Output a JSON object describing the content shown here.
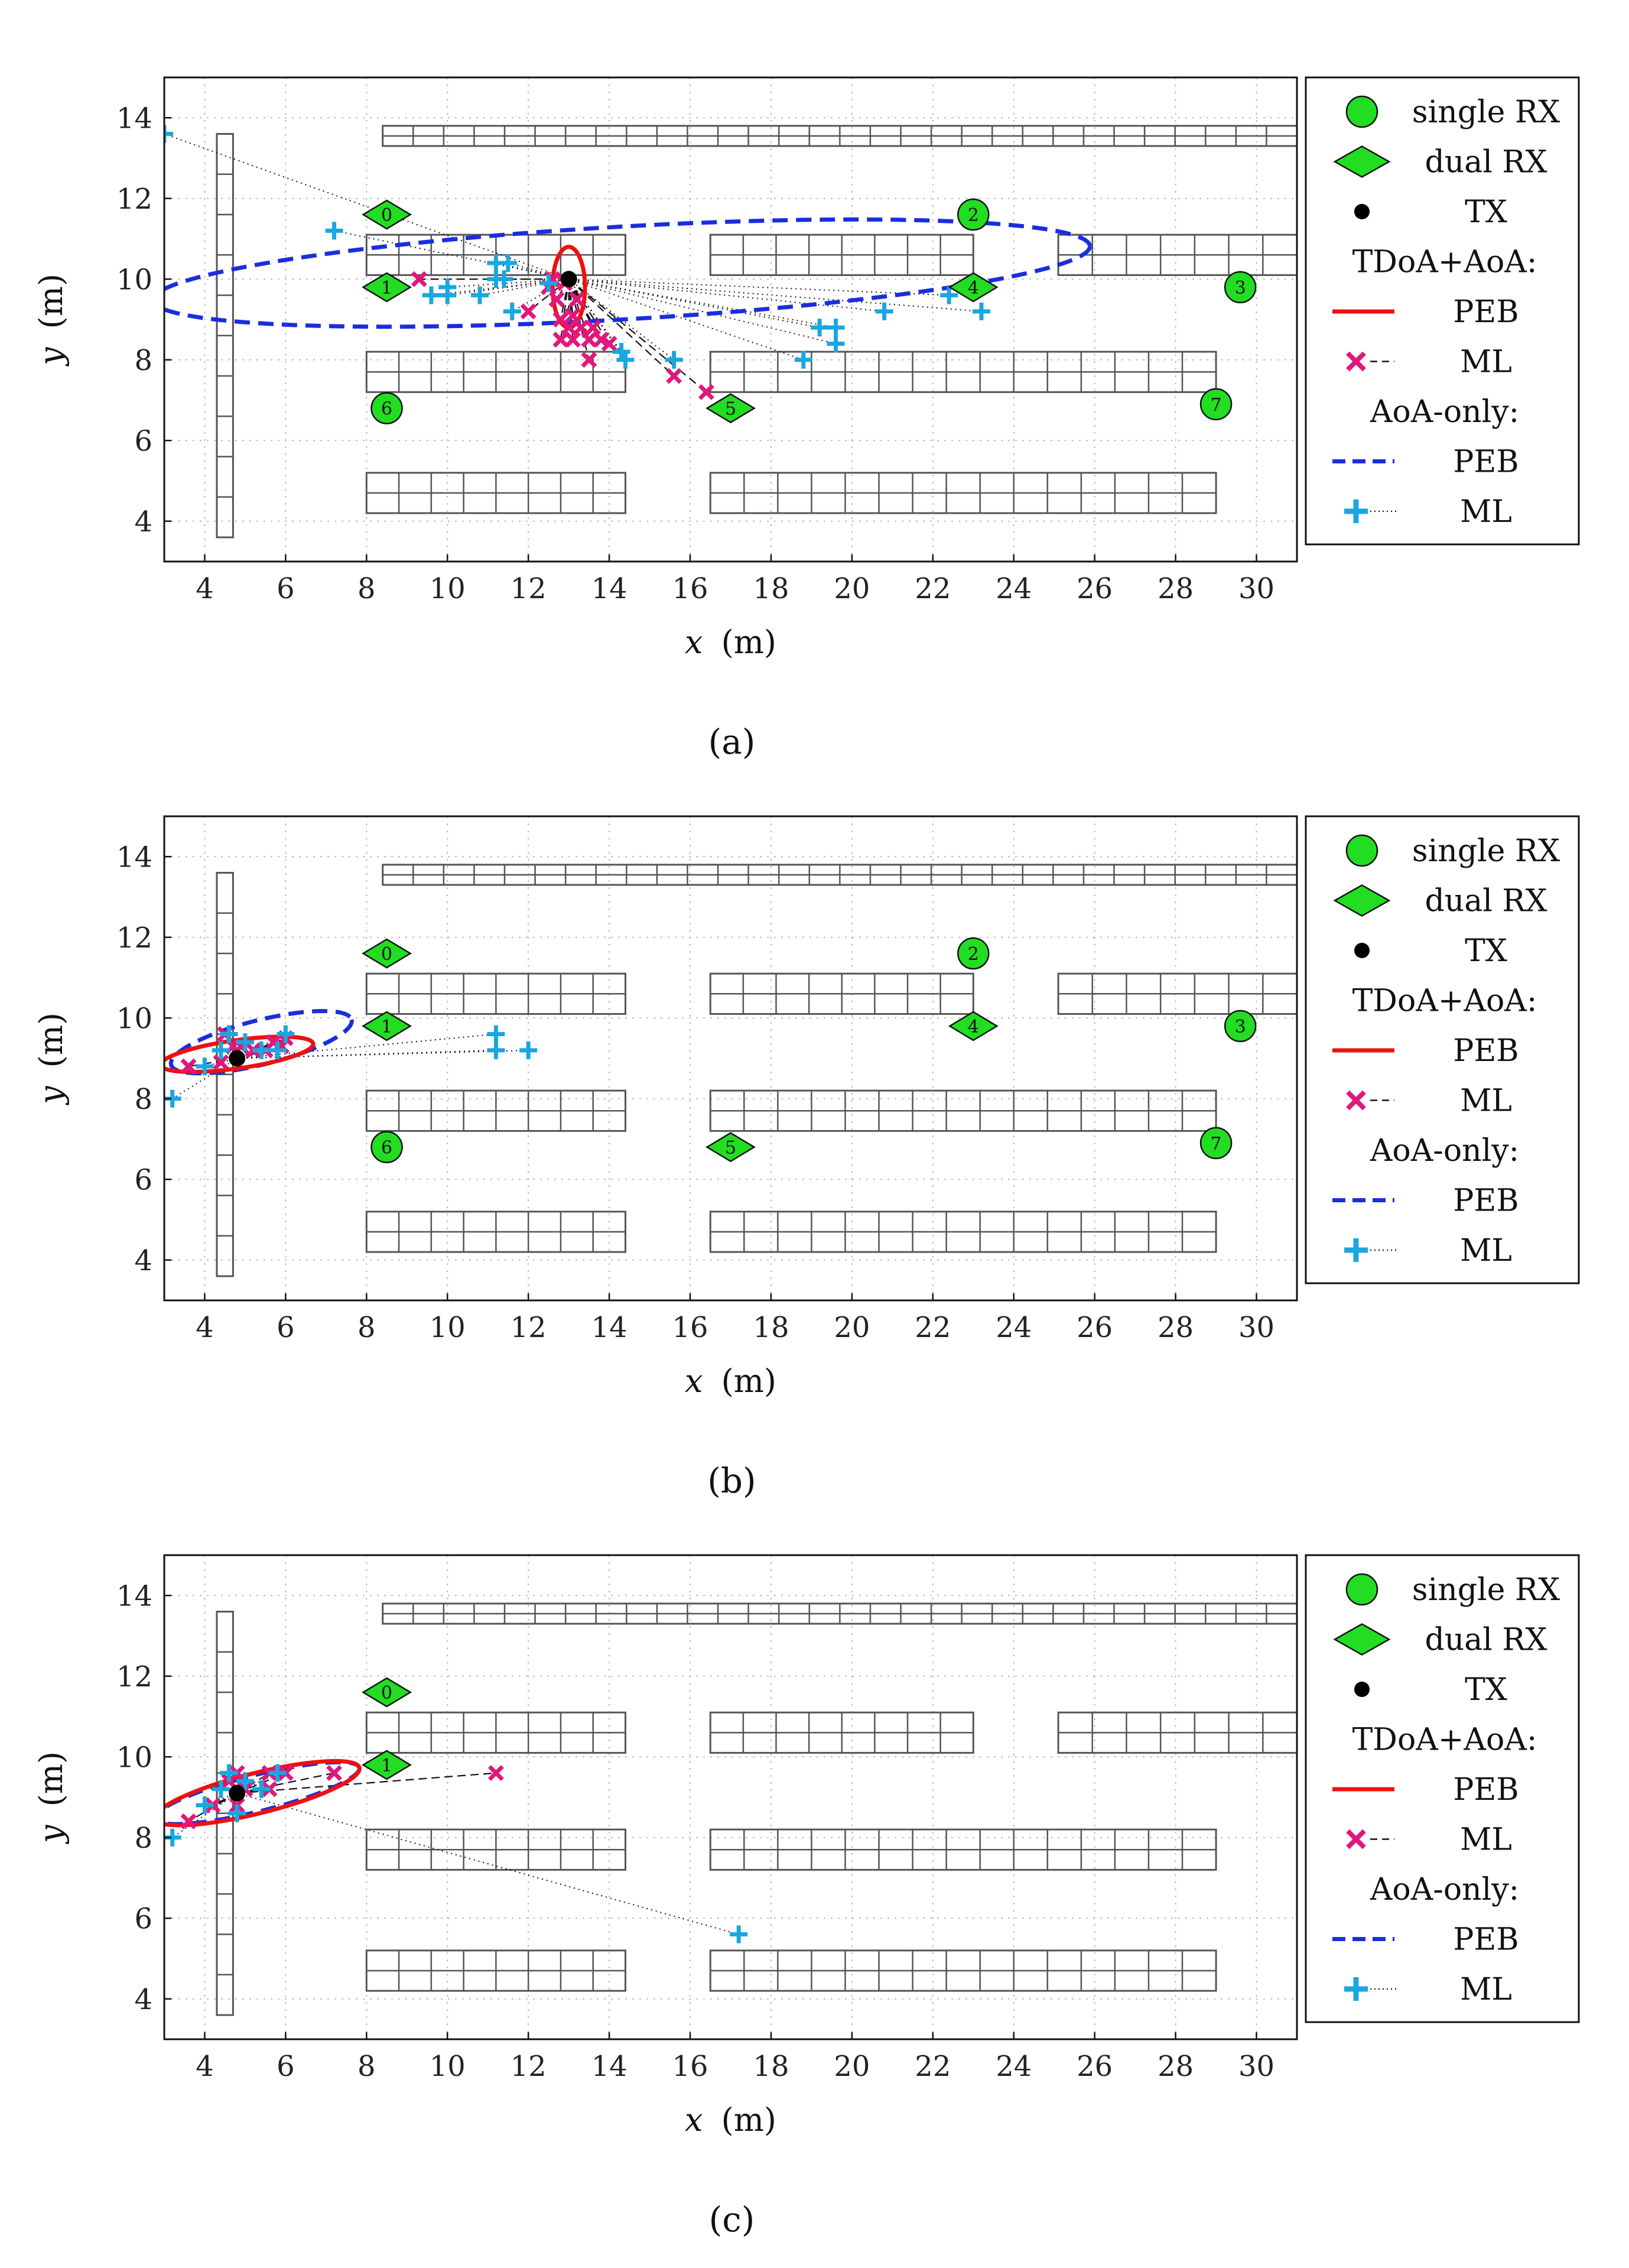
{
  "figure": {
    "axis_range": {
      "xlim": [
        3,
        31
      ],
      "ylim": [
        3,
        15
      ]
    },
    "x_ticks": [
      4,
      6,
      8,
      10,
      12,
      14,
      16,
      18,
      20,
      22,
      24,
      26,
      28,
      30
    ],
    "y_ticks": [
      4,
      6,
      8,
      10,
      12,
      14
    ],
    "x_label": {
      "var": "x",
      "unit": "(m)"
    },
    "y_label": {
      "var": "y",
      "unit": "(m)"
    },
    "legend": {
      "single_rx": "single RX",
      "dual_rx": "dual RX",
      "tx": "TX",
      "tdoa_aoa_header": "TDoA+AoA:",
      "tdoa_peb": "PEB",
      "tdoa_ml": "ML",
      "aoa_header": "AoA-only:",
      "aoa_peb": "PEB",
      "aoa_ml": "ML"
    },
    "colors": {
      "rx_fill": "#22dd22",
      "tdoa_peb": "#ee1111",
      "tdoa_ml": "#e0187c",
      "aoa_peb": "#1a2edd",
      "aoa_ml": "#1aa6e0",
      "tx": "#000000",
      "grid": "#bbbbbb",
      "shelf": "#555555"
    }
  },
  "chart_data": [
    {
      "type": "scatter",
      "panel": "a",
      "caption": "(a)",
      "xlabel": "x (m)",
      "ylabel": "y (m)",
      "xlim": [
        3,
        31
      ],
      "ylim": [
        3,
        15
      ],
      "grid": true,
      "shelves": [
        {
          "x0": 8.4,
          "x1": 31,
          "y0": 13.3,
          "y1": 13.8,
          "n": 30
        },
        {
          "x0": 8,
          "x1": 14.4,
          "y0": 10.1,
          "y1": 11.1,
          "n": 8
        },
        {
          "x0": 16.5,
          "x1": 23,
          "y0": 10.1,
          "y1": 11.1,
          "n": 8
        },
        {
          "x0": 25.1,
          "x1": 31,
          "y0": 10.1,
          "y1": 11.1,
          "n": 7
        },
        {
          "x0": 8,
          "x1": 14.4,
          "y0": 7.2,
          "y1": 8.2,
          "n": 8
        },
        {
          "x0": 16.5,
          "x1": 29,
          "y0": 7.2,
          "y1": 8.2,
          "n": 15
        },
        {
          "x0": 8,
          "x1": 14.4,
          "y0": 4.2,
          "y1": 5.2,
          "n": 8
        },
        {
          "x0": 16.5,
          "x1": 29,
          "y0": 4.2,
          "y1": 5.2,
          "n": 15
        },
        {
          "x0": 4.3,
          "x1": 4.7,
          "y0": 3.6,
          "y1": 13.6,
          "n": 10,
          "vertical": true
        }
      ],
      "single_rx": [
        {
          "id": "2",
          "x": 23,
          "y": 11.6
        },
        {
          "id": "3",
          "x": 29.6,
          "y": 9.8
        },
        {
          "id": "6",
          "x": 8.5,
          "y": 6.8
        },
        {
          "id": "7",
          "x": 29,
          "y": 6.9
        }
      ],
      "dual_rx": [
        {
          "id": "0",
          "x": 8.5,
          "y": 11.6
        },
        {
          "id": "1",
          "x": 8.5,
          "y": 9.8
        },
        {
          "id": "4",
          "x": 23,
          "y": 9.8
        },
        {
          "id": "5",
          "x": 17,
          "y": 6.8
        }
      ],
      "tx": {
        "x": 13,
        "y": 10
      },
      "tdoa_peb_ellipse": {
        "cx": 13,
        "cy": 9.8,
        "rx": 0.4,
        "ry": 1.0,
        "angle": 0
      },
      "aoa_peb_ellipse": {
        "cx": 14.3,
        "cy": 10.15,
        "rx": 11.6,
        "ry": 1.15,
        "angle": 3.3
      },
      "tdoa_ml": [
        [
          9.3,
          10.0
        ],
        [
          12.0,
          9.2
        ],
        [
          12.5,
          9.8
        ],
        [
          12.7,
          9.5
        ],
        [
          12.8,
          9.0
        ],
        [
          12.8,
          8.5
        ],
        [
          13.0,
          8.8
        ],
        [
          13.1,
          8.5
        ],
        [
          13.3,
          8.8
        ],
        [
          13.5,
          8.5
        ],
        [
          13.6,
          8.8
        ],
        [
          13.8,
          8.5
        ],
        [
          13.5,
          8.0
        ],
        [
          14.0,
          8.4
        ],
        [
          15.6,
          7.6
        ],
        [
          16.4,
          7.2
        ],
        [
          12.9,
          9.9
        ],
        [
          13.2,
          9.5
        ],
        [
          12.6,
          10.0
        ],
        [
          13.1,
          9.1
        ]
      ],
      "aoa_ml": [
        [
          7.2,
          11.2
        ],
        [
          9.6,
          9.6
        ],
        [
          10.0,
          9.8
        ],
        [
          10.0,
          9.6
        ],
        [
          10.8,
          9.6
        ],
        [
          11.2,
          10.4
        ],
        [
          11.5,
          10.4
        ],
        [
          11.4,
          10.0
        ],
        [
          11.6,
          9.2
        ],
        [
          12.5,
          9.9
        ],
        [
          14.3,
          8.2
        ],
        [
          14.4,
          8.0
        ],
        [
          15.6,
          8.0
        ],
        [
          18.8,
          8.0
        ],
        [
          19.2,
          8.8
        ],
        [
          19.6,
          8.8
        ],
        [
          19.6,
          8.4
        ],
        [
          20.8,
          9.2
        ],
        [
          22.4,
          9.6
        ],
        [
          23.2,
          9.2
        ],
        [
          11.2,
          10.0
        ],
        [
          3.0,
          13.6
        ]
      ]
    },
    {
      "type": "scatter",
      "panel": "b",
      "caption": "(b)",
      "xlabel": "x (m)",
      "ylabel": "y (m)",
      "xlim": [
        3,
        31
      ],
      "ylim": [
        3,
        15
      ],
      "grid": true,
      "single_rx": [
        {
          "id": "2",
          "x": 23,
          "y": 11.6
        },
        {
          "id": "3",
          "x": 29.6,
          "y": 9.8
        },
        {
          "id": "6",
          "x": 8.5,
          "y": 6.8
        },
        {
          "id": "7",
          "x": 29,
          "y": 6.9
        }
      ],
      "dual_rx": [
        {
          "id": "0",
          "x": 8.5,
          "y": 11.6
        },
        {
          "id": "1",
          "x": 8.5,
          "y": 9.8
        },
        {
          "id": "4",
          "x": 23,
          "y": 9.8
        },
        {
          "id": "5",
          "x": 17,
          "y": 6.8
        }
      ],
      "tx": {
        "x": 4.8,
        "y": 9.0
      },
      "tdoa_peb_ellipse": {
        "cx": 4.8,
        "cy": 9.1,
        "rx": 1.9,
        "ry": 0.35,
        "angle": 8
      },
      "aoa_peb_ellipse": {
        "cx": 5.4,
        "cy": 9.4,
        "rx": 2.3,
        "ry": 0.55,
        "angle": 14
      },
      "tdoa_ml": [
        [
          3.6,
          8.8
        ],
        [
          4.4,
          8.9
        ],
        [
          4.5,
          9.6
        ],
        [
          4.7,
          9.3
        ],
        [
          4.9,
          9.3
        ],
        [
          5.2,
          9.2
        ],
        [
          5.5,
          9.2
        ],
        [
          5.7,
          9.4
        ],
        [
          5.9,
          9.3
        ],
        [
          6.0,
          9.5
        ]
      ],
      "aoa_ml": [
        [
          3.2,
          8.0
        ],
        [
          4.0,
          8.8
        ],
        [
          4.4,
          9.2
        ],
        [
          4.6,
          9.6
        ],
        [
          5.0,
          9.4
        ],
        [
          5.4,
          9.2
        ],
        [
          5.8,
          9.2
        ],
        [
          6.0,
          9.6
        ],
        [
          11.2,
          9.6
        ],
        [
          11.2,
          9.2
        ],
        [
          12.0,
          9.2
        ]
      ]
    },
    {
      "type": "scatter",
      "panel": "c",
      "caption": "(c)",
      "xlabel": "x (m)",
      "ylabel": "y (m)",
      "xlim": [
        3,
        31
      ],
      "ylim": [
        3,
        15
      ],
      "grid": true,
      "single_rx": [],
      "dual_rx": [
        {
          "id": "0",
          "x": 8.5,
          "y": 11.6
        },
        {
          "id": "1",
          "x": 8.5,
          "y": 9.8
        }
      ],
      "tx": {
        "x": 4.8,
        "y": 9.1
      },
      "tdoa_peb_ellipse": {
        "cx": 5.3,
        "cy": 9.1,
        "rx": 2.6,
        "ry": 0.5,
        "angle": 14
      },
      "aoa_peb_ellipse": {
        "cx": 5.3,
        "cy": 9.1,
        "rx": 2.6,
        "ry": 0.45,
        "angle": 14
      },
      "tdoa_ml": [
        [
          3.6,
          8.4
        ],
        [
          4.2,
          8.8
        ],
        [
          4.6,
          9.4
        ],
        [
          4.8,
          9.6
        ],
        [
          5.0,
          9.2
        ],
        [
          5.6,
          9.6
        ],
        [
          5.6,
          9.2
        ],
        [
          6.0,
          9.6
        ],
        [
          7.2,
          9.6
        ],
        [
          11.2,
          9.6
        ],
        [
          4.8,
          8.8
        ]
      ],
      "aoa_ml": [
        [
          3.2,
          8.0
        ],
        [
          4.0,
          8.8
        ],
        [
          4.4,
          9.2
        ],
        [
          4.6,
          9.6
        ],
        [
          5.0,
          9.4
        ],
        [
          5.4,
          9.2
        ],
        [
          5.8,
          9.6
        ],
        [
          4.8,
          8.6
        ],
        [
          17.2,
          5.6
        ]
      ]
    }
  ]
}
